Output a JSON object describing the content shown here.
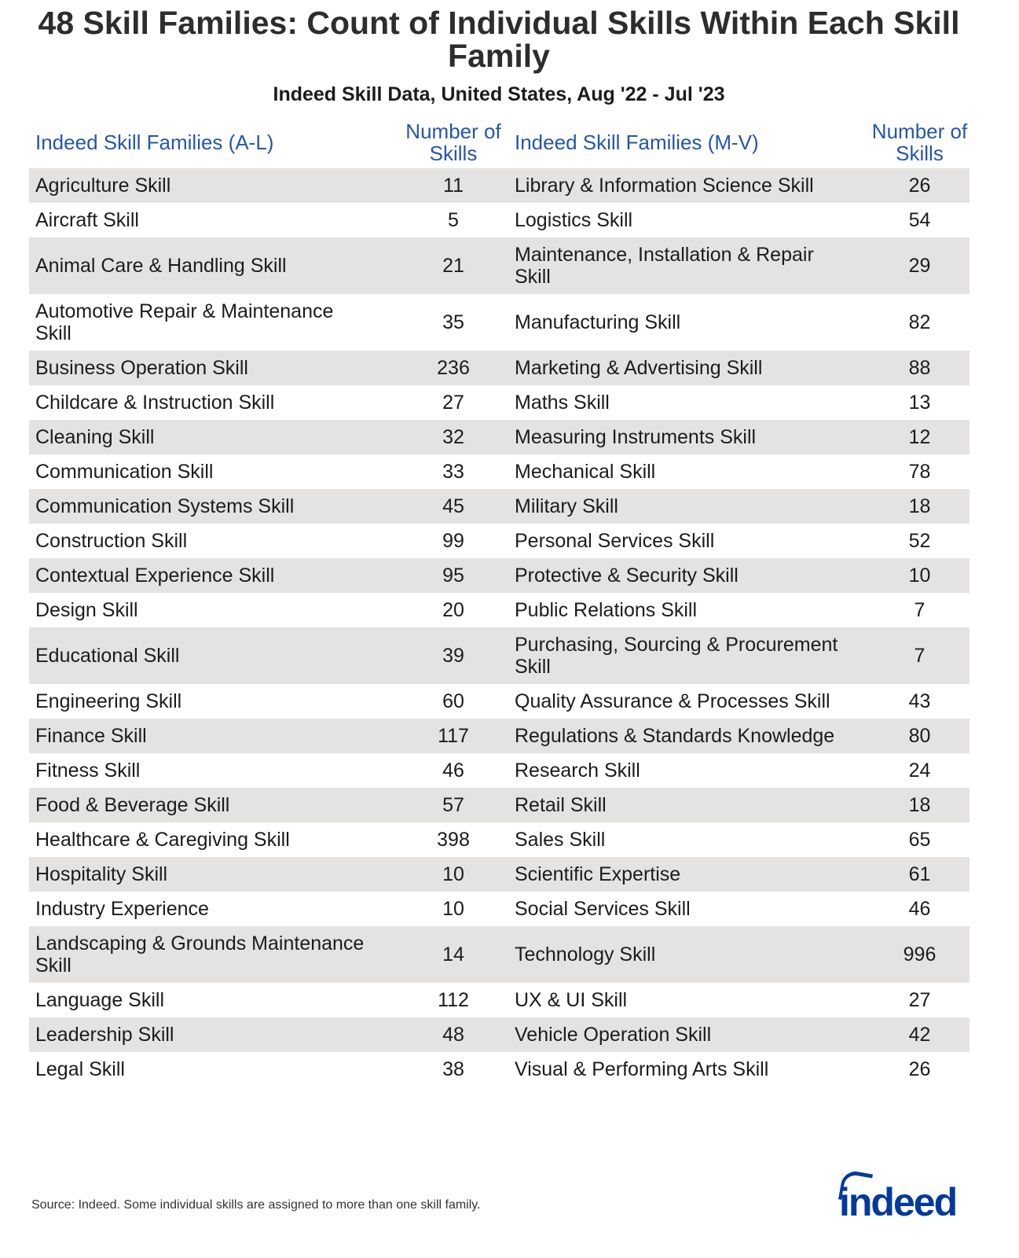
{
  "title": "48 Skill Families: Count of Individual Skills Within Each Skill Family",
  "subtitle": "Indeed Skill Data, United States, Aug '22 - Jul '23",
  "source": "Source: Indeed. Some individual skills are assigned to more than one skill family.",
  "logo_text": "indeed",
  "colors": {
    "header_text": "#2557a7",
    "stripe": "#e4e3e2",
    "logo": "#003a9b"
  },
  "chart_data": {
    "type": "table",
    "title": "48 Skill Families: Count of Individual Skills Within Each Skill Family",
    "columns": [
      "Indeed Skill Families (A-L)",
      "Number of Skills",
      "Indeed Skill Families (M-V)",
      "Number of Skills"
    ],
    "rows": [
      [
        "Agriculture Skill",
        "11",
        "Library & Information Science Skill",
        "26"
      ],
      [
        "Aircraft Skill",
        "5",
        "Logistics Skill",
        "54"
      ],
      [
        "Animal Care & Handling Skill",
        "21",
        "Maintenance, Installation & Repair Skill",
        "29"
      ],
      [
        "Automotive Repair & Maintenance Skill",
        "35",
        "Manufacturing Skill",
        "82"
      ],
      [
        "Business Operation Skill",
        "236",
        "Marketing & Advertising Skill",
        "88"
      ],
      [
        "Childcare & Instruction Skill",
        "27",
        "Maths Skill",
        "13"
      ],
      [
        "Cleaning Skill",
        "32",
        "Measuring Instruments Skill",
        "12"
      ],
      [
        "Communication Skill",
        "33",
        "Mechanical Skill",
        "78"
      ],
      [
        "Communication Systems Skill",
        "45",
        "Military Skill",
        "18"
      ],
      [
        "Construction Skill",
        "99",
        "Personal Services Skill",
        "52"
      ],
      [
        "Contextual Experience Skill",
        "95",
        "Protective & Security Skill",
        "10"
      ],
      [
        "Design Skill",
        "20",
        "Public Relations Skill",
        "7"
      ],
      [
        "Educational Skill",
        "39",
        "Purchasing, Sourcing & Procurement Skill",
        "7"
      ],
      [
        "Engineering Skill",
        "60",
        "Quality Assurance & Processes Skill",
        "43"
      ],
      [
        "Finance Skill",
        "117",
        "Regulations & Standards Knowledge",
        "80"
      ],
      [
        "Fitness Skill",
        "46",
        "Research Skill",
        "24"
      ],
      [
        "Food & Beverage Skill",
        "57",
        "Retail Skill",
        "18"
      ],
      [
        "Healthcare & Caregiving Skill",
        "398",
        "Sales Skill",
        "65"
      ],
      [
        "Hospitality Skill",
        "10",
        "Scientific Expertise",
        "61"
      ],
      [
        "Industry Experience",
        "10",
        "Social Services Skill",
        "46"
      ],
      [
        "Landscaping & Grounds Maintenance Skill",
        "14",
        "Technology Skill",
        "996"
      ],
      [
        "Language Skill",
        "112",
        "UX & UI Skill",
        "27"
      ],
      [
        "Leadership Skill",
        "48",
        "Vehicle Operation Skill",
        "42"
      ],
      [
        "Legal Skill",
        "38",
        "Visual & Performing Arts Skill",
        "26"
      ]
    ]
  }
}
